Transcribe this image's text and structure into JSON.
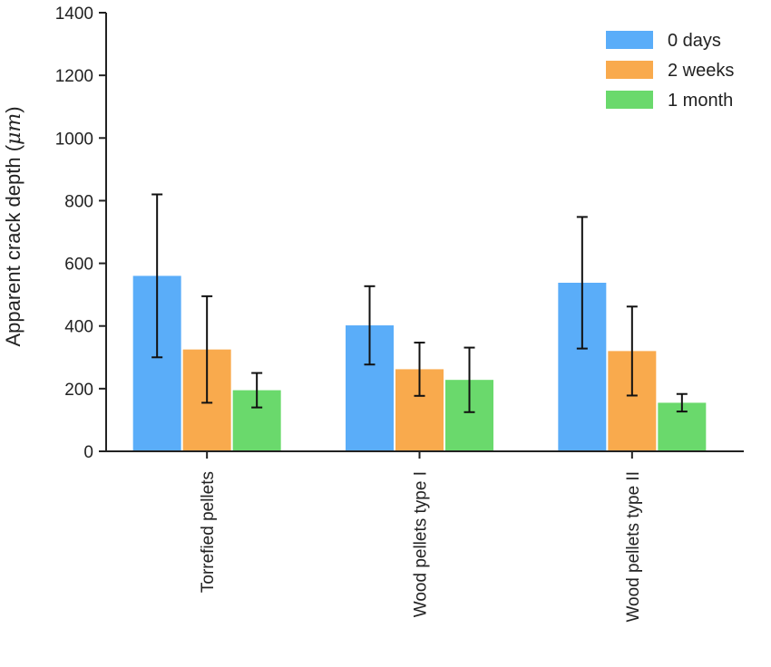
{
  "chart_data": {
    "type": "bar",
    "title": "",
    "xlabel": "",
    "ylabel": "Apparent crack depth (",
    "ylabel_unit": "μm",
    "ylabel_close": ")",
    "ylim": [
      0,
      1400
    ],
    "yticks": [
      0,
      200,
      400,
      600,
      800,
      1000,
      1200,
      1400
    ],
    "grid": false,
    "legend_position": "top-right",
    "categories": [
      "Torrefied pellets",
      "Wood pellets type I",
      "Wood pellets type II"
    ],
    "series": [
      {
        "name": "0 days",
        "color": "#5aadf9",
        "values": [
          560,
          402,
          538
        ],
        "error": [
          260,
          125,
          210
        ]
      },
      {
        "name": "2 weeks",
        "color": "#f9aa4d",
        "values": [
          325,
          262,
          320
        ],
        "error": [
          170,
          85,
          142
        ]
      },
      {
        "name": "1 month",
        "color": "#6ad96c",
        "values": [
          195,
          228,
          155
        ],
        "error": [
          55,
          103,
          28
        ]
      }
    ]
  }
}
